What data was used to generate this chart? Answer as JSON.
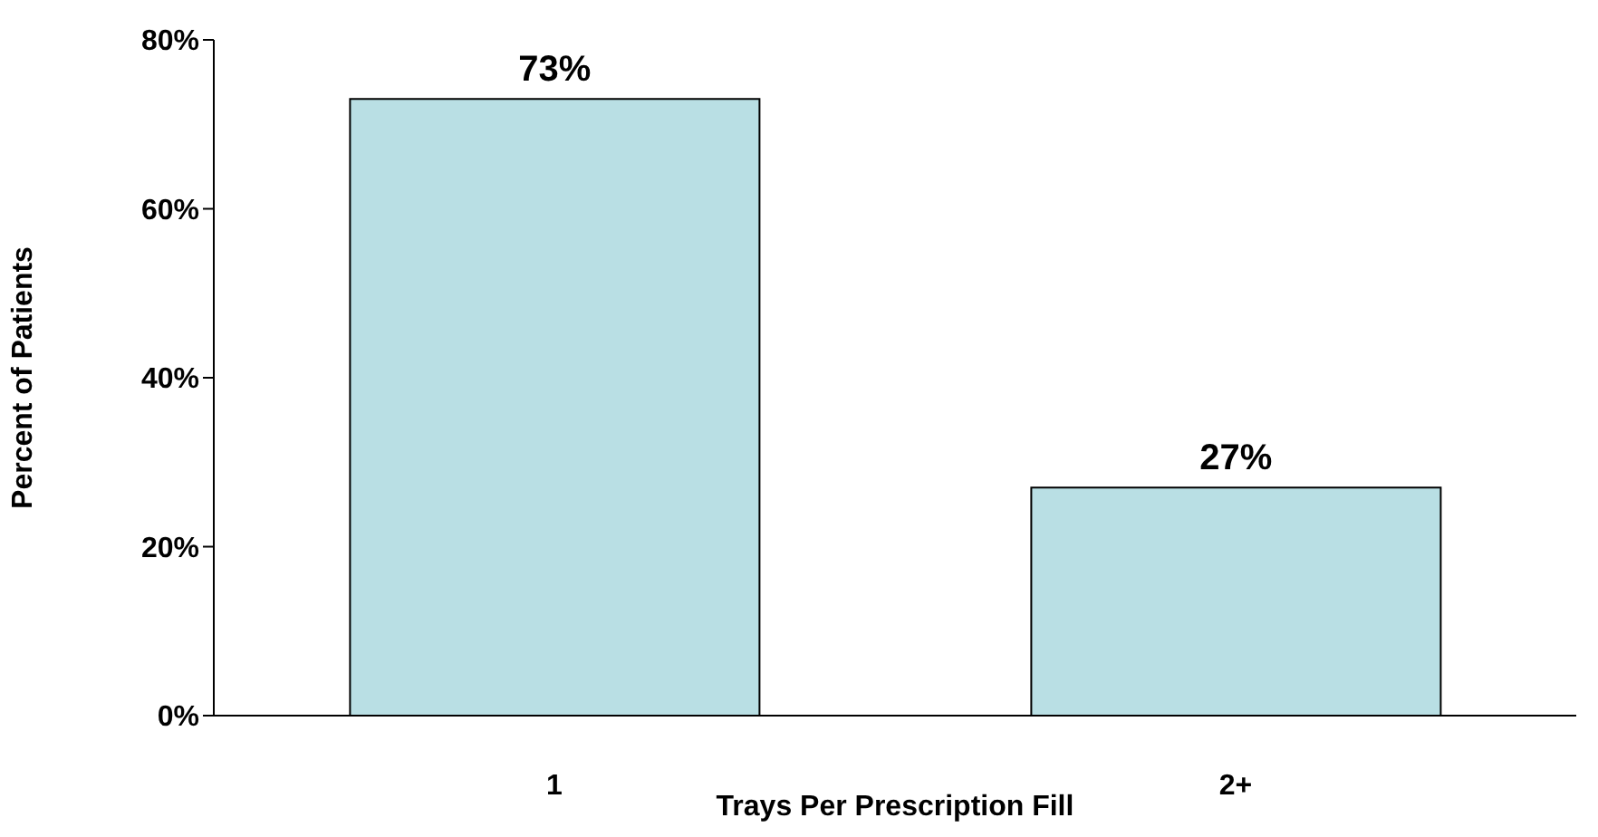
{
  "chart_data": {
    "type": "bar",
    "xlabel": "Trays Per Prescription Fill",
    "ylabel": "Percent of Patients",
    "categories": [
      "1",
      "2+"
    ],
    "values": [
      73,
      27
    ],
    "value_labels": [
      "73%",
      "27%"
    ],
    "color": "#b9dfe4",
    "ylim": [
      0,
      80
    ],
    "yticks": [
      {
        "value": 0,
        "label": "0%"
      },
      {
        "value": 20,
        "label": "20%"
      },
      {
        "value": 40,
        "label": "40%"
      },
      {
        "value": 60,
        "label": "60%"
      },
      {
        "value": 80,
        "label": "80%"
      }
    ],
    "grid": false,
    "legend": false
  }
}
